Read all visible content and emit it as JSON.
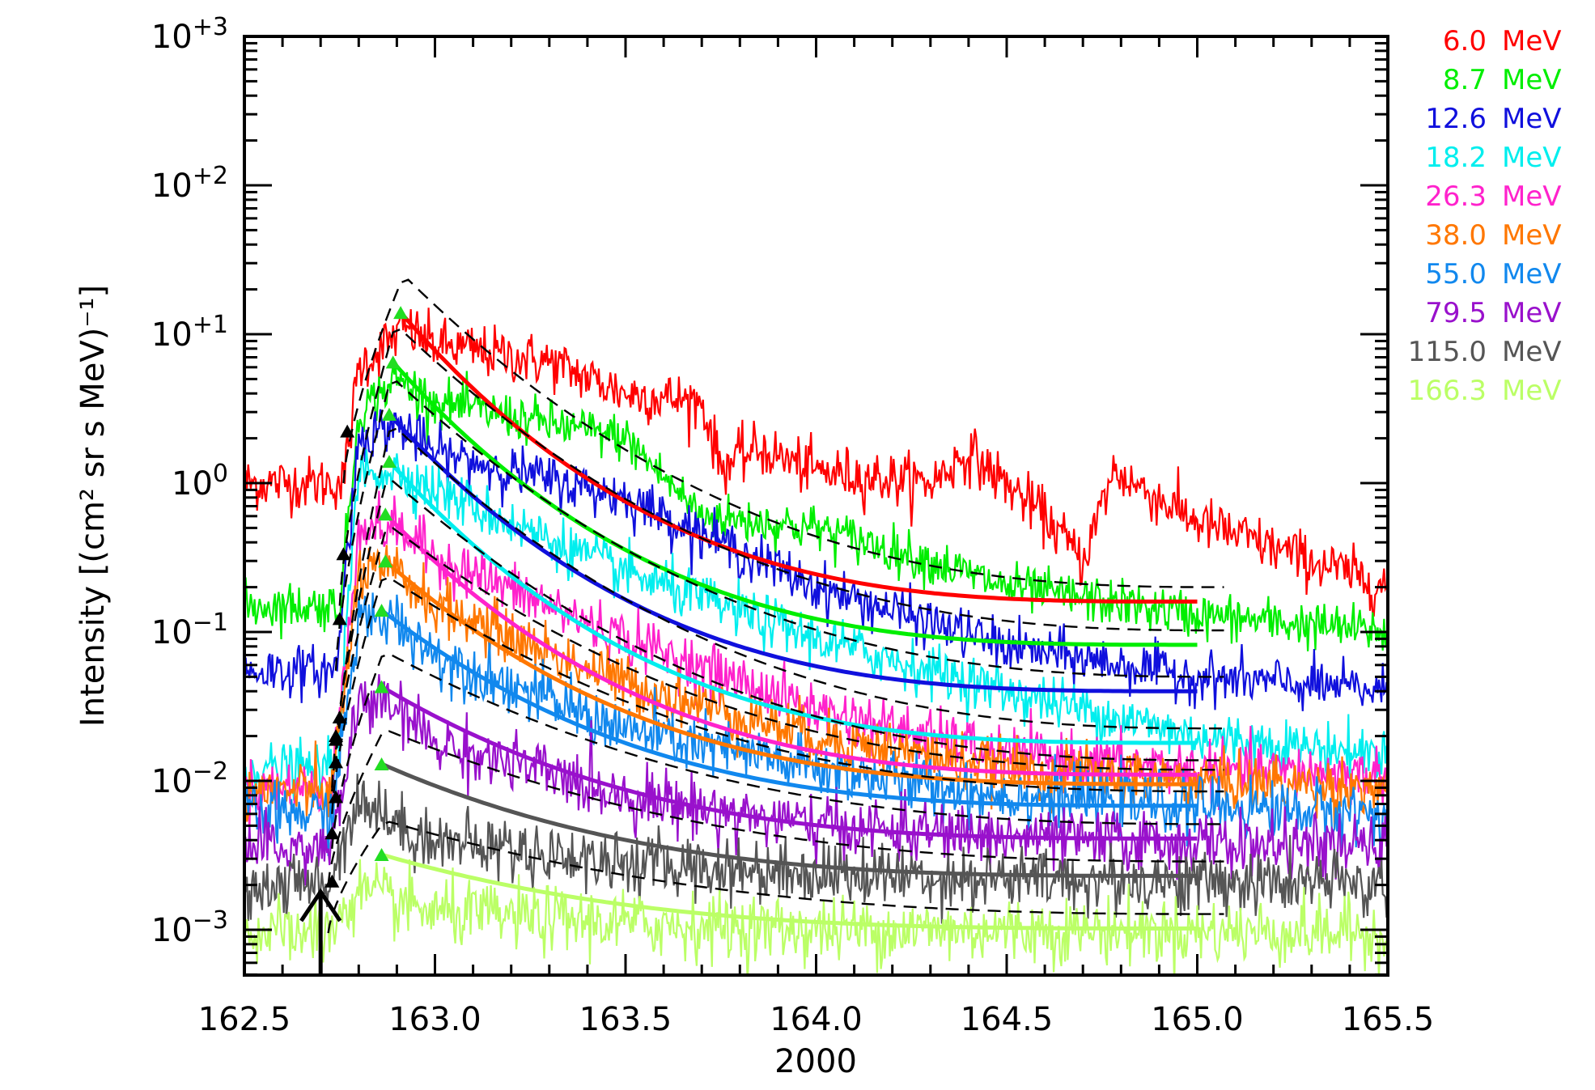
{
  "chart_data": {
    "type": "line",
    "title": "",
    "xlabel": "2000",
    "ylabel": "Intensity [(cm² sr s MeV)⁻¹]",
    "xlim": [
      162.5,
      165.5
    ],
    "ylim": [
      0.0005,
      1000
    ],
    "yscale": "log",
    "x_ticks": [
      {
        "value": 162.5,
        "label": "162.5"
      },
      {
        "value": 163.0,
        "label": "163.0"
      },
      {
        "value": 163.5,
        "label": "163.5"
      },
      {
        "value": 164.0,
        "label": "164.0"
      },
      {
        "value": 164.5,
        "label": "164.5"
      },
      {
        "value": 165.0,
        "label": "165.0"
      },
      {
        "value": 165.5,
        "label": "165.5"
      }
    ],
    "y_ticks": [
      {
        "value": 0.001,
        "base": "10",
        "exp": "−3"
      },
      {
        "value": 0.01,
        "base": "10",
        "exp": "−2"
      },
      {
        "value": 0.1,
        "base": "10",
        "exp": "−1"
      },
      {
        "value": 1,
        "base": "10",
        "exp": "0"
      },
      {
        "value": 10,
        "base": "10",
        "exp": "+1"
      },
      {
        "value": 100,
        "base": "10",
        "exp": "+2"
      },
      {
        "value": 1000,
        "base": "10",
        "exp": "+3"
      }
    ],
    "onset_marker": {
      "x": 162.7,
      "note": "upward arrow marking event onset"
    },
    "legend_placement": "right, outside plot",
    "series": [
      {
        "name": "6.0 MeV",
        "energy": "6.0",
        "unit": "MeV",
        "color": "#ff0000",
        "background": 1.0,
        "onset_x": 162.76,
        "peak_x": 162.91,
        "peak": 14.0,
        "fit_end": 0.16,
        "profile": [
          [
            162.8,
            6.0
          ],
          [
            162.92,
            11.0
          ],
          [
            163.0,
            8.5
          ],
          [
            163.3,
            6.5
          ],
          [
            163.5,
            4.0
          ],
          [
            163.7,
            3.5
          ],
          [
            163.75,
            1.3
          ],
          [
            163.85,
            1.7
          ],
          [
            164.0,
            1.2
          ],
          [
            164.3,
            1.0
          ],
          [
            164.4,
            1.6
          ],
          [
            164.6,
            0.6
          ],
          [
            164.7,
            0.3
          ],
          [
            164.78,
            1.2
          ],
          [
            165.0,
            0.55
          ],
          [
            165.5,
            0.2
          ]
        ]
      },
      {
        "name": "8.7 MeV",
        "energy": "8.7",
        "unit": "MeV",
        "color": "#00ee00",
        "background": 0.15,
        "onset_x": 162.75,
        "peak_x": 162.89,
        "peak": 6.5,
        "fit_end": 0.082,
        "profile": [
          [
            162.8,
            3.0
          ],
          [
            162.9,
            5.0
          ],
          [
            163.0,
            3.5
          ],
          [
            163.2,
            2.8
          ],
          [
            163.5,
            2.0
          ],
          [
            163.7,
            0.6
          ],
          [
            164.0,
            0.5
          ],
          [
            164.3,
            0.3
          ],
          [
            164.5,
            0.2
          ],
          [
            165.0,
            0.13
          ],
          [
            165.5,
            0.1
          ]
        ]
      },
      {
        "name": "12.6 MeV",
        "energy": "12.6",
        "unit": "MeV",
        "color": "#1010dd",
        "background": 0.055,
        "onset_x": 162.74,
        "peak_x": 162.88,
        "peak": 2.9,
        "fit_end": 0.04,
        "profile": [
          [
            162.8,
            2.0
          ],
          [
            162.9,
            2.5
          ],
          [
            163.0,
            1.6
          ],
          [
            163.5,
            0.8
          ],
          [
            164.0,
            0.2
          ],
          [
            164.5,
            0.08
          ],
          [
            165.0,
            0.05
          ],
          [
            165.5,
            0.04
          ]
        ]
      },
      {
        "name": "18.2 MeV",
        "energy": "18.2",
        "unit": "MeV",
        "color": "#00eeee",
        "background": 0.012,
        "onset_x": 162.74,
        "peak_x": 162.88,
        "peak": 1.4,
        "fit_end": 0.018,
        "profile": [
          [
            162.8,
            1.2
          ],
          [
            162.9,
            1.2
          ],
          [
            163.0,
            0.9
          ],
          [
            163.5,
            0.25
          ],
          [
            164.0,
            0.09
          ],
          [
            164.5,
            0.04
          ],
          [
            165.0,
            0.02
          ],
          [
            165.5,
            0.015
          ]
        ]
      },
      {
        "name": "26.3 MeV",
        "energy": "26.3",
        "unit": "MeV",
        "color": "#ff22cc",
        "background": 0.009,
        "onset_x": 162.73,
        "peak_x": 162.87,
        "peak": 0.62,
        "fit_end": 0.011,
        "profile": [
          [
            162.8,
            0.5
          ],
          [
            162.9,
            0.5
          ],
          [
            163.0,
            0.32
          ],
          [
            163.5,
            0.09
          ],
          [
            164.0,
            0.03
          ],
          [
            164.5,
            0.015
          ],
          [
            165.0,
            0.012
          ],
          [
            165.5,
            0.011
          ]
        ]
      },
      {
        "name": "38.0 MeV",
        "energy": "38.0",
        "unit": "MeV",
        "color": "#ff7700",
        "background": 0.0085,
        "onset_x": 162.73,
        "peak_x": 162.87,
        "peak": 0.3,
        "fit_end": 0.0095,
        "profile": [
          [
            162.8,
            0.25
          ],
          [
            162.9,
            0.25
          ],
          [
            163.0,
            0.15
          ],
          [
            163.5,
            0.045
          ],
          [
            164.0,
            0.02
          ],
          [
            164.5,
            0.012
          ],
          [
            165.0,
            0.01
          ],
          [
            165.5,
            0.009
          ]
        ]
      },
      {
        "name": "55.0 MeV",
        "energy": "55.0",
        "unit": "MeV",
        "color": "#1188ee",
        "background": 0.006,
        "onset_x": 162.73,
        "peak_x": 162.86,
        "peak": 0.14,
        "fit_end": 0.0068,
        "profile": [
          [
            162.8,
            0.12
          ],
          [
            162.9,
            0.12
          ],
          [
            163.0,
            0.07
          ],
          [
            163.5,
            0.022
          ],
          [
            164.0,
            0.012
          ],
          [
            164.5,
            0.008
          ],
          [
            165.0,
            0.0068
          ],
          [
            165.5,
            0.006
          ]
        ]
      },
      {
        "name": "79.5 MeV",
        "energy": "79.5",
        "unit": "MeV",
        "color": "#9911cc",
        "background": 0.0035,
        "onset_x": 162.73,
        "peak_x": 162.86,
        "peak": 0.043,
        "fit_end": 0.0041,
        "profile": [
          [
            162.8,
            0.035
          ],
          [
            162.9,
            0.03
          ],
          [
            163.0,
            0.018
          ],
          [
            163.5,
            0.008
          ],
          [
            164.0,
            0.005
          ],
          [
            164.5,
            0.0042
          ],
          [
            165.0,
            0.0038
          ],
          [
            165.5,
            0.0035
          ]
        ]
      },
      {
        "name": "115.0 MeV",
        "energy": "115.0",
        "unit": "MeV",
        "color": "#555555",
        "background": 0.002,
        "onset_x": 162.72,
        "peak_x": 162.86,
        "peak": 0.013,
        "fit_end": 0.0023,
        "profile": [
          [
            162.8,
            0.008
          ],
          [
            162.9,
            0.005
          ],
          [
            163.0,
            0.004
          ],
          [
            163.5,
            0.0028
          ],
          [
            164.0,
            0.0024
          ],
          [
            164.5,
            0.0022
          ],
          [
            165.0,
            0.0021
          ],
          [
            165.5,
            0.002
          ]
        ]
      },
      {
        "name": "166.3 MeV",
        "energy": "166.3",
        "unit": "MeV",
        "color": "#bbff66",
        "background": 0.00095,
        "onset_x": 162.72,
        "peak_x": 162.86,
        "peak": 0.0032,
        "fit_end": 0.00102,
        "profile": [
          [
            162.8,
            0.0018
          ],
          [
            162.9,
            0.0015
          ],
          [
            163.0,
            0.0013
          ],
          [
            163.5,
            0.0011
          ],
          [
            164.0,
            0.001
          ],
          [
            164.5,
            0.001
          ],
          [
            165.0,
            0.00098
          ],
          [
            165.5,
            0.00095
          ]
        ]
      }
    ],
    "markers": {
      "onset_triangles": {
        "color": "#000000",
        "description": "black triangles marking onset of each channel"
      },
      "peak_triangles": {
        "color": "#22dd22",
        "description": "green triangles marking fitted peak"
      },
      "model_fit": "thick solid colored curves from peak to 165.0",
      "dashed_fit": "black dashed curves (alternative model)"
    }
  }
}
